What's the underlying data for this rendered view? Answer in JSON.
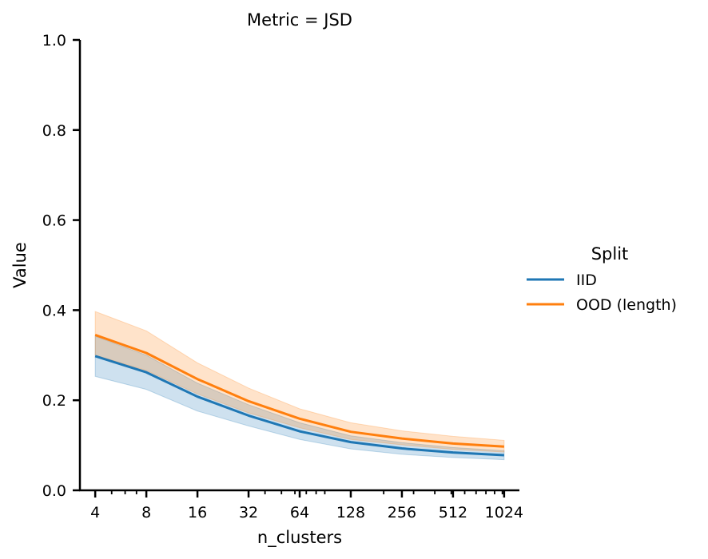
{
  "chart_data": {
    "type": "line",
    "title": "Metric = JSD",
    "xlabel": "n_clusters",
    "ylabel": "Value",
    "xscale": "log2",
    "xlim": [
      3.25,
      1260
    ],
    "ylim": [
      0.0,
      1.0
    ],
    "x": [
      4,
      8,
      16,
      32,
      64,
      128,
      256,
      512,
      1024
    ],
    "xticks": [
      "4",
      "8",
      "16",
      "32",
      "64",
      "128",
      "256",
      "512",
      "1024"
    ],
    "yticks": [
      "0.0",
      "0.2",
      "0.4",
      "0.6",
      "0.8",
      "1.0"
    ],
    "ytick_values": [
      0.0,
      0.2,
      0.4,
      0.6,
      0.8,
      1.0
    ],
    "legend_title": "Split",
    "legend_position": "right",
    "series": [
      {
        "name": "IID",
        "color": "#1f77b4",
        "values": [
          0.298,
          0.262,
          0.208,
          0.166,
          0.131,
          0.107,
          0.093,
          0.084,
          0.078
        ],
        "ci_low": [
          0.253,
          0.224,
          0.176,
          0.143,
          0.113,
          0.092,
          0.08,
          0.073,
          0.068
        ],
        "ci_high": [
          0.342,
          0.3,
          0.238,
          0.19,
          0.15,
          0.121,
          0.106,
          0.095,
          0.088
        ]
      },
      {
        "name": "OOD (length)",
        "color": "#ff7f0e",
        "values": [
          0.345,
          0.305,
          0.247,
          0.198,
          0.159,
          0.13,
          0.115,
          0.104,
          0.097
        ],
        "ci_low": [
          0.3,
          0.266,
          0.214,
          0.172,
          0.139,
          0.113,
          0.101,
          0.091,
          0.085
        ],
        "ci_high": [
          0.397,
          0.354,
          0.283,
          0.227,
          0.181,
          0.15,
          0.132,
          0.12,
          0.111
        ]
      }
    ]
  }
}
